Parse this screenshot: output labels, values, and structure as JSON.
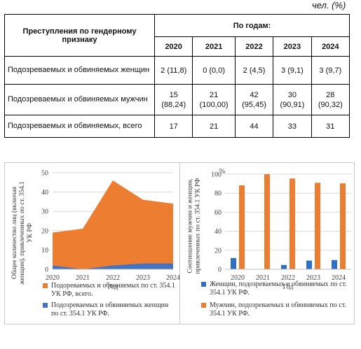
{
  "unit": "чел. (%)",
  "table": {
    "header_label": "Преступления по гендерному признаку",
    "header_years_label": "По годам:",
    "years": [
      "2020",
      "2021",
      "2022",
      "2023",
      "2024"
    ],
    "rows": [
      {
        "label": "Подозреваемых и обвиняемых женщин",
        "cells": [
          "2 (11,8)",
          "0 (0,0)",
          "2 (4,5)",
          "3 (9,1)",
          "3 (9,7)"
        ]
      },
      {
        "label": "Подозреваемых и обвиняемых мужчин",
        "cells": [
          "15 (88,24)",
          "21 (100,00)",
          "42 (95,45)",
          "30 (90,91)",
          "28 (90,32)"
        ]
      },
      {
        "label": "Подозреваемых и обвиняемых, всего",
        "cells": [
          "17",
          "21",
          "44",
          "33",
          "31"
        ]
      }
    ]
  },
  "chart_data": [
    {
      "type": "area",
      "x": [
        "2020",
        "2021",
        "2022",
        "2023",
        "2024"
      ],
      "xlabel": "Год",
      "ylabel": "Общее количество лиц (включая женщин), привлеченных по ст. 354.1 УК РФ",
      "ylim": [
        0,
        50
      ],
      "yticks": [
        "0",
        "10",
        "20",
        "30",
        "40",
        "50"
      ],
      "grid": true,
      "series": [
        {
          "name": "Подореваемых и обвиняемых по ст. 354.1 УК РФ, всего.",
          "values": [
            19,
            21,
            46,
            36,
            34
          ],
          "color": "#ed7d31"
        },
        {
          "name": "Подозреваемых и обвиняемых женщин по ст. 354.1 УК РФ.",
          "values": [
            2,
            0,
            2,
            3,
            3
          ],
          "color": "#4472c4"
        }
      ]
    },
    {
      "type": "bar",
      "categories": [
        "2020",
        "2021",
        "2022",
        "2023",
        "2024"
      ],
      "xlabel": "Год",
      "ylabel": "Соотношение мужчин и женщин, привлеченных по ст. 354.1 УК РФ",
      "unit_label": "%",
      "ylim": [
        0,
        100
      ],
      "yticks": [
        "0",
        "20",
        "40",
        "60",
        "80",
        "100"
      ],
      "grid": true,
      "series": [
        {
          "name": "Женщин, подозреваемых и обвиняемых по ст. 354.1 УК РФ.",
          "values": [
            11.8,
            0,
            4.5,
            9.1,
            9.7
          ],
          "color": "#2f6fc7"
        },
        {
          "name": "Мужчин, подозреваемых и обвиняемых по ст. 354.1 УК РФ.",
          "values": [
            88.24,
            100,
            95.45,
            90.91,
            90.32
          ],
          "color": "#ed7d31"
        }
      ]
    }
  ]
}
